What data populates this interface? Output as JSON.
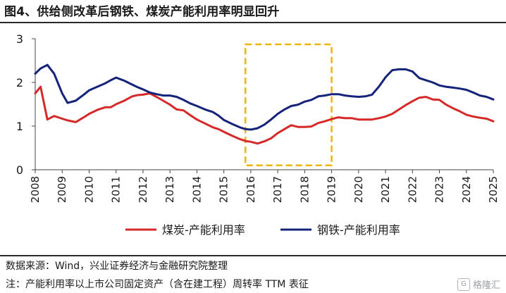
{
  "title": "图4、供给侧改革后钢铁、煤炭产能利用率明显回升",
  "source_note": "数据来源：Wind，兴业证券经济与金融研究院整理",
  "definition_note": "注：产能利用率以上市公司固定资产（含在建工程）周转率 TTM 表征",
  "watermark": {
    "logo": "G",
    "text": "格隆汇"
  },
  "colors": {
    "coal": "#d62a2a",
    "steel": "#15237a",
    "highlight": "#f0b400",
    "axis": "#444444"
  },
  "chart_data": {
    "type": "line",
    "title": "",
    "xlabel": "",
    "ylabel": "",
    "xlim": [
      2008,
      2025
    ],
    "ylim": [
      0,
      3
    ],
    "y_ticks": [
      "0",
      "1",
      "2",
      "3"
    ],
    "x_ticks": [
      "2008",
      "2009",
      "2010",
      "2011",
      "2012",
      "2013",
      "2014",
      "2015",
      "2016",
      "2017",
      "2018",
      "2019",
      "2020",
      "2021",
      "2022",
      "2023",
      "2024",
      "2025"
    ],
    "grid": false,
    "legend_position": "bottom",
    "highlight_range": {
      "x": [
        2015.8,
        2019.0
      ],
      "y": [
        0.1,
        2.87
      ],
      "style": "dashed"
    },
    "series": [
      {
        "name": "煤炭-产能利用率",
        "color": "#d62a2a",
        "x": [
          2008.0,
          2008.2,
          2008.45,
          2008.7,
          2009.0,
          2009.2,
          2009.5,
          2009.8,
          2010.0,
          2010.3,
          2010.6,
          2010.8,
          2011.0,
          2011.3,
          2011.6,
          2011.8,
          2012.0,
          2012.25,
          2012.5,
          2012.75,
          2013.0,
          2013.25,
          2013.5,
          2013.75,
          2014.0,
          2014.3,
          2014.6,
          2014.8,
          2015.0,
          2015.3,
          2015.6,
          2015.8,
          2016.0,
          2016.25,
          2016.5,
          2016.75,
          2017.0,
          2017.25,
          2017.5,
          2017.75,
          2018.0,
          2018.25,
          2018.5,
          2018.75,
          2019.0,
          2019.25,
          2019.5,
          2019.75,
          2020.0,
          2020.25,
          2020.5,
          2020.75,
          2021.0,
          2021.25,
          2021.5,
          2021.75,
          2022.0,
          2022.25,
          2022.5,
          2022.75,
          2023.0,
          2023.25,
          2023.5,
          2023.75,
          2024.0,
          2024.25,
          2024.5,
          2024.75,
          2025.0
        ],
        "values": [
          1.75,
          1.9,
          1.15,
          1.23,
          1.17,
          1.13,
          1.09,
          1.2,
          1.28,
          1.37,
          1.43,
          1.43,
          1.5,
          1.58,
          1.68,
          1.71,
          1.72,
          1.75,
          1.67,
          1.58,
          1.49,
          1.38,
          1.36,
          1.25,
          1.15,
          1.06,
          0.97,
          0.93,
          0.87,
          0.78,
          0.7,
          0.66,
          0.64,
          0.6,
          0.65,
          0.72,
          0.84,
          0.93,
          1.02,
          0.98,
          0.98,
          0.99,
          1.07,
          1.11,
          1.16,
          1.2,
          1.18,
          1.18,
          1.15,
          1.15,
          1.15,
          1.18,
          1.22,
          1.28,
          1.38,
          1.48,
          1.57,
          1.65,
          1.67,
          1.61,
          1.6,
          1.49,
          1.41,
          1.34,
          1.26,
          1.22,
          1.19,
          1.17,
          1.11
        ]
      },
      {
        "name": "钢铁-产能利用率",
        "color": "#15237a",
        "x": [
          2008.0,
          2008.2,
          2008.45,
          2008.7,
          2009.0,
          2009.2,
          2009.5,
          2009.8,
          2010.0,
          2010.3,
          2010.6,
          2010.8,
          2011.0,
          2011.3,
          2011.6,
          2011.8,
          2012.0,
          2012.25,
          2012.5,
          2012.75,
          2013.0,
          2013.25,
          2013.5,
          2013.75,
          2014.0,
          2014.3,
          2014.6,
          2014.8,
          2015.0,
          2015.3,
          2015.6,
          2015.8,
          2016.0,
          2016.25,
          2016.5,
          2016.75,
          2017.0,
          2017.25,
          2017.5,
          2017.75,
          2018.0,
          2018.25,
          2018.5,
          2018.75,
          2019.0,
          2019.25,
          2019.5,
          2019.75,
          2020.0,
          2020.25,
          2020.5,
          2020.75,
          2021.0,
          2021.25,
          2021.5,
          2021.75,
          2022.0,
          2022.25,
          2022.5,
          2022.75,
          2023.0,
          2023.25,
          2023.5,
          2023.75,
          2024.0,
          2024.25,
          2024.5,
          2024.75,
          2025.0
        ],
        "values": [
          2.2,
          2.32,
          2.4,
          2.2,
          1.75,
          1.53,
          1.58,
          1.72,
          1.82,
          1.9,
          1.98,
          2.05,
          2.11,
          2.04,
          1.95,
          1.89,
          1.84,
          1.77,
          1.73,
          1.7,
          1.7,
          1.67,
          1.6,
          1.52,
          1.46,
          1.38,
          1.32,
          1.24,
          1.14,
          1.05,
          0.97,
          0.93,
          0.92,
          0.95,
          1.03,
          1.15,
          1.28,
          1.38,
          1.46,
          1.49,
          1.56,
          1.6,
          1.68,
          1.7,
          1.73,
          1.73,
          1.7,
          1.68,
          1.67,
          1.68,
          1.72,
          1.9,
          2.12,
          2.28,
          2.3,
          2.3,
          2.25,
          2.1,
          2.05,
          2.0,
          1.93,
          1.9,
          1.88,
          1.86,
          1.83,
          1.77,
          1.7,
          1.67,
          1.61
        ]
      }
    ]
  }
}
